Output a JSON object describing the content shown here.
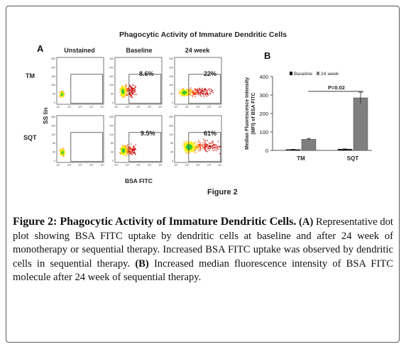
{
  "figure": {
    "title": "Phagocytic Activity of Immature Dendritic Cells",
    "label": "Figure 2",
    "panel_a": {
      "letter": "A",
      "columns": [
        "Unstained",
        "Baseline",
        "24 week"
      ],
      "rows": [
        "TM",
        "SQT"
      ],
      "y_axis_label": "SS lin",
      "x_axis_label": "BSA FITC",
      "y_ticks": [
        "250",
        "200",
        "150",
        "100",
        "50",
        "0"
      ],
      "y_ticks_sqt": [
        "250",
        "200",
        "120",
        "80",
        "40",
        "0"
      ],
      "x_ticks": [
        "10⁰",
        "10¹",
        "10²",
        "10³",
        "10⁴"
      ],
      "percentages": {
        "TM": [
          "",
          "8.6%",
          "22%"
        ],
        "SQT": [
          "",
          "9.5%",
          "61%"
        ]
      },
      "density_colors": [
        "#cc0000",
        "#ff3300",
        "#ff9900",
        "#ffee00",
        "#33cc33"
      ]
    },
    "panel_b": {
      "letter": "B",
      "chart_data": {
        "type": "bar",
        "categories": [
          "TM",
          "SQT"
        ],
        "series": [
          {
            "name": "Baseline",
            "values": [
              5,
              7
            ],
            "errors": [
              1,
              1
            ],
            "color": "#000000"
          },
          {
            "name": "24 week",
            "values": [
              60,
              285
            ],
            "errors": [
              5,
              30
            ],
            "color": "#7f7f7f"
          }
        ],
        "ylabel": "Median Fluorescence Intensity (MFI) of BSA FITC",
        "ylim": [
          0,
          400
        ],
        "yticks": [
          0,
          100,
          200,
          300,
          400
        ],
        "annotation": "P=0.02",
        "legend": "top"
      }
    }
  },
  "caption": {
    "title": "Figure 2: Phagocytic Activity of Immature Dendritic Cells.",
    "a_marker": "(A)",
    "a_text": "Representative dot plot showing BSA FITC uptake by dendritic cells at baseline and after 24 week of monotherapy or sequential therapy. Increased BSA FITC uptake was observed by dendritic cells in sequential therapy.",
    "b_marker": "(B)",
    "b_text": "Increased median fluorescence intensity of BSA FITC molecule after 24 week of sequential therapy."
  }
}
